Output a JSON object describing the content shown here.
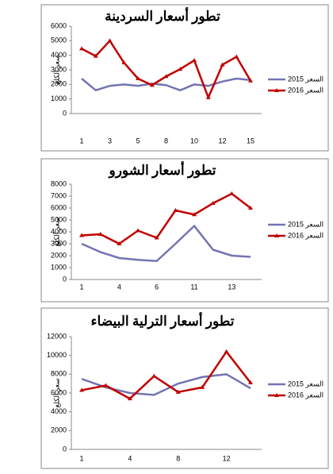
{
  "chart_data": [
    {
      "type": "line",
      "title": "تطور أسعار السردينة",
      "y_label": "سعر الكلغ",
      "categories": [
        "1",
        null,
        "3",
        null,
        "5",
        null,
        "8",
        null,
        "10",
        null,
        "12",
        null,
        "15"
      ],
      "ylim": [
        0,
        6000
      ],
      "yticks": [
        0,
        1000,
        2000,
        3000,
        4000,
        5000,
        6000
      ],
      "grid": false,
      "legend": "right",
      "series": [
        {
          "name": "السعر 2015",
          "color": "#7373b3",
          "values": [
            2400,
            1600,
            1900,
            2000,
            1900,
            2050,
            1950,
            1600,
            2000,
            1900,
            2200,
            2400,
            2300
          ]
        },
        {
          "name": "السعر 2016",
          "color": "#c00000",
          "values": [
            4450,
            3950,
            5000,
            3500,
            2400,
            1950,
            2550,
            3050,
            3650,
            1100,
            3350,
            3900,
            2250
          ]
        }
      ]
    },
    {
      "type": "line",
      "title": "تطور أسعار الشورو",
      "y_label": "سعر الكلغ",
      "categories": [
        "1",
        null,
        "4",
        null,
        "6",
        null,
        "11",
        null,
        "13",
        null
      ],
      "ylim": [
        0,
        8000
      ],
      "yticks": [
        0,
        1000,
        2000,
        3000,
        4000,
        5000,
        6000,
        7000,
        8000
      ],
      "grid": false,
      "legend": "right",
      "series": [
        {
          "name": "السعر 2015",
          "color": "#7373b3",
          "values": [
            3000,
            2300,
            1800,
            1650,
            1550,
            3000,
            4500,
            2500,
            2000,
            1900
          ]
        },
        {
          "name": "السعر 2016",
          "color": "#c00000",
          "values": [
            3700,
            3800,
            3000,
            4100,
            3500,
            5800,
            5450,
            6400,
            7200,
            6000
          ]
        }
      ]
    },
    {
      "type": "line",
      "title": "تطور أسعار الترلية البيضاء",
      "y_label": "سعر الكلغ",
      "categories": [
        "1",
        null,
        "4",
        null,
        "8",
        null,
        "12",
        null
      ],
      "ylim": [
        0,
        12000
      ],
      "yticks": [
        0,
        2000,
        4000,
        6000,
        8000,
        10000,
        12000
      ],
      "grid": false,
      "legend": "right",
      "series": [
        {
          "name": "السعر 2015",
          "color": "#7373b3",
          "values": [
            7500,
            6600,
            6000,
            5800,
            7000,
            7700,
            8000,
            6500
          ]
        },
        {
          "name": "السعر 2016",
          "color": "#c00000",
          "values": [
            6300,
            6800,
            5400,
            7800,
            6100,
            6600,
            10400,
            7100
          ]
        }
      ]
    }
  ]
}
